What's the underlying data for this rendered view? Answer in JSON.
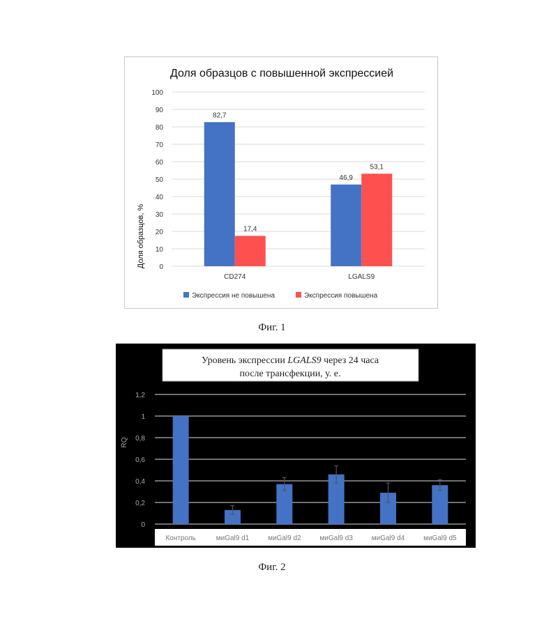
{
  "figures": {
    "fig1_caption": "Фиг. 1",
    "fig2_caption": "Фиг. 2"
  },
  "chart_data": [
    {
      "type": "bar",
      "title": "Доля образцов с повышенной экспрессией",
      "xlabel": "",
      "ylabel": "Доля образцов, %",
      "ylim": [
        0,
        100
      ],
      "yticks": [
        0,
        10,
        20,
        30,
        40,
        50,
        60,
        70,
        80,
        90,
        100
      ],
      "categories": [
        "CD274",
        "LGALS9"
      ],
      "series": [
        {
          "name": "Экспрессия не повышена",
          "values": [
            82.7,
            46.9
          ],
          "labels": [
            "82,7",
            "46,9"
          ],
          "color": "#4472c4"
        },
        {
          "name": "Экспрессия повышена",
          "values": [
            17.4,
            53.1
          ],
          "labels": [
            "17,4",
            "53,1"
          ],
          "color": "#ff5050"
        }
      ],
      "grid": true,
      "legend": "bottom",
      "background": "#ffffff"
    },
    {
      "type": "bar",
      "title_parts": {
        "pre": "Уровень экспрессии ",
        "gene": "LGALS9",
        "post": " через 24 часа",
        "line2": "после трансфекции, у. е."
      },
      "xlabel": "",
      "ylabel": "RQ",
      "ylim": [
        0,
        1.2
      ],
      "yticks": [
        "0",
        "0,2",
        "0,4",
        "0,6",
        "0,8",
        "1",
        "1,2"
      ],
      "categories": [
        "Контроль",
        "миGal9 d1",
        "миGal9 d2",
        "миGal9 d3",
        "миGal9 d4",
        "миGal9 d5"
      ],
      "values": [
        1.0,
        0.13,
        0.37,
        0.46,
        0.29,
        0.36
      ],
      "errors": [
        0.0,
        0.04,
        0.06,
        0.08,
        0.09,
        0.05
      ],
      "color": "#4472c4",
      "grid": true,
      "background": "#000000"
    }
  ]
}
